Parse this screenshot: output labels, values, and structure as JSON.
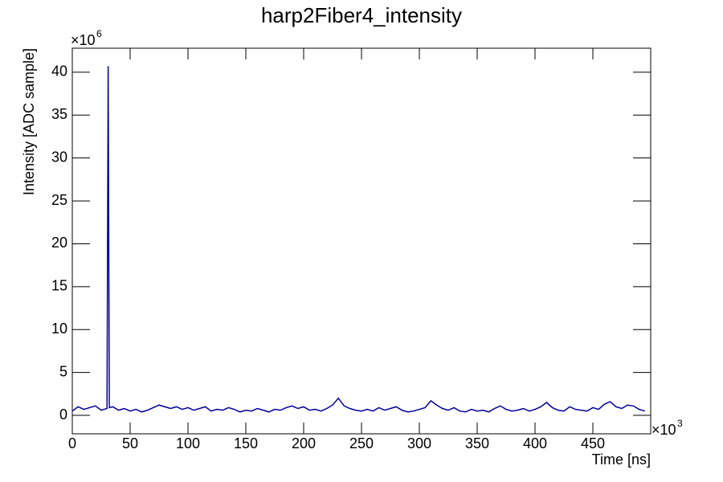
{
  "chart_data": {
    "type": "line",
    "title": "harp2Fiber4_intensity",
    "x_label": "Time [ns]",
    "y_label": "Intensity [ADC sample]",
    "x_multiplier": "×10",
    "x_exponent": "3",
    "y_multiplier": "×10",
    "y_exponent": "6",
    "x": [
      0,
      5,
      10,
      15,
      20,
      25,
      30,
      31,
      32,
      35,
      40,
      45,
      50,
      55,
      60,
      65,
      70,
      75,
      80,
      85,
      90,
      95,
      100,
      105,
      110,
      115,
      120,
      125,
      130,
      135,
      140,
      145,
      150,
      155,
      160,
      165,
      170,
      175,
      180,
      185,
      190,
      195,
      200,
      205,
      210,
      215,
      220,
      225,
      230,
      235,
      240,
      245,
      250,
      255,
      260,
      265,
      270,
      275,
      280,
      285,
      290,
      295,
      300,
      305,
      310,
      315,
      320,
      325,
      330,
      335,
      340,
      345,
      350,
      355,
      360,
      365,
      370,
      375,
      380,
      385,
      390,
      395,
      400,
      405,
      410,
      415,
      420,
      425,
      430,
      435,
      440,
      445,
      450,
      455,
      460,
      465,
      470,
      475,
      480,
      485,
      490,
      495
    ],
    "series": [
      {
        "color": "#000099",
        "values": [
          0.5,
          1.0,
          0.7,
          0.9,
          1.1,
          0.6,
          0.8,
          40.7,
          0.9,
          1.0,
          0.6,
          0.8,
          0.5,
          0.7,
          0.4,
          0.6,
          0.9,
          1.2,
          1.0,
          0.8,
          1.0,
          0.7,
          0.9,
          0.6,
          0.8,
          1.0,
          0.5,
          0.7,
          0.6,
          0.9,
          0.7,
          0.4,
          0.6,
          0.5,
          0.8,
          0.6,
          0.4,
          0.7,
          0.6,
          0.9,
          1.1,
          0.8,
          1.0,
          0.6,
          0.7,
          0.5,
          0.8,
          1.2,
          2.0,
          1.1,
          0.8,
          0.6,
          0.5,
          0.7,
          0.5,
          0.9,
          0.6,
          0.8,
          1.0,
          0.6,
          0.4,
          0.5,
          0.7,
          0.9,
          1.7,
          1.2,
          0.8,
          0.6,
          0.9,
          0.5,
          0.4,
          0.7,
          0.5,
          0.6,
          0.4,
          0.8,
          1.1,
          0.7,
          0.5,
          0.6,
          0.8,
          0.5,
          0.7,
          1.0,
          1.5,
          0.9,
          0.6,
          0.5,
          1.0,
          0.7,
          0.6,
          0.5,
          0.9,
          0.7,
          1.3,
          1.6,
          1.0,
          0.8,
          1.2,
          1.1,
          0.7,
          0.5
        ]
      }
    ],
    "xlim": [
      0,
      500
    ],
    "xticks": [
      0,
      50,
      100,
      150,
      200,
      250,
      300,
      350,
      400,
      450
    ],
    "ylim": [
      -2.15,
      42.8
    ],
    "yticks": [
      0,
      5,
      10,
      15,
      20,
      25,
      30,
      35,
      40
    ]
  }
}
